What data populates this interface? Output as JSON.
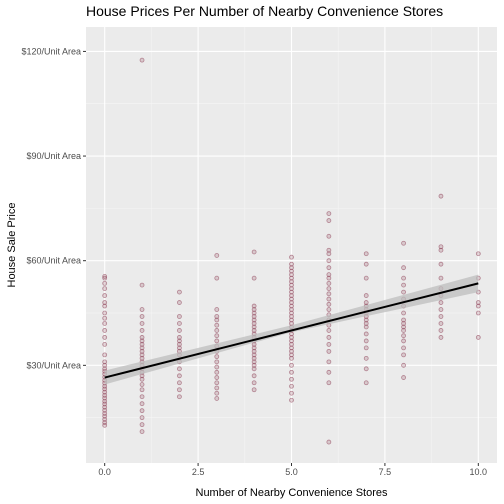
{
  "chart_data": {
    "type": "scatter",
    "title": "House Prices Per Number of Nearby Convenience Stores",
    "xlabel": "Number of Nearby Convenience Stores",
    "ylabel": "House Sale Price",
    "xlim": [
      -0.5,
      10.5
    ],
    "ylim": [
      2,
      127
    ],
    "x_ticks": [
      {
        "value": 0,
        "label": "0.0"
      },
      {
        "value": 2.5,
        "label": "2.5"
      },
      {
        "value": 5,
        "label": "5.0"
      },
      {
        "value": 7.5,
        "label": "7.5"
      },
      {
        "value": 10,
        "label": "10.0"
      }
    ],
    "y_ticks": [
      {
        "value": 30,
        "label": "$30/Unit Area"
      },
      {
        "value": 60,
        "label": "$60/Unit Area"
      },
      {
        "value": 90,
        "label": "$90/Unit Area"
      },
      {
        "value": 120,
        "label": "$120/Unit Area"
      }
    ],
    "x_minor": [
      1.25,
      3.75,
      6.25,
      8.75
    ],
    "y_minor": [
      15,
      45,
      75,
      105
    ],
    "grid": true,
    "point_color": "#8b3a52",
    "background_color": "#ebebeb",
    "series": [
      {
        "x": [
          0,
          0,
          0,
          0,
          0,
          0,
          0,
          0,
          0,
          0,
          0,
          0,
          0,
          0,
          0,
          0,
          0,
          0,
          0,
          0,
          0,
          0,
          0,
          0,
          0,
          0,
          0,
          0,
          0,
          0,
          0,
          0,
          0,
          0,
          0,
          0,
          1,
          1,
          1,
          1,
          1,
          1,
          1,
          1,
          1,
          1,
          1,
          1,
          1,
          1,
          1,
          1,
          1,
          1,
          1,
          1,
          1,
          1,
          1,
          1,
          1,
          1,
          1,
          2,
          2,
          2,
          2,
          2,
          2,
          2,
          2,
          2,
          2,
          2,
          2,
          2,
          2,
          2,
          2,
          2,
          3,
          3,
          3,
          3,
          3,
          3,
          3,
          3,
          3,
          3,
          3,
          3,
          3,
          3,
          3,
          3,
          3,
          3,
          3,
          3,
          4,
          4,
          4,
          4,
          4,
          4,
          4,
          4,
          4,
          4,
          4,
          4,
          4,
          4,
          4,
          4,
          4,
          4,
          4,
          4,
          4,
          4,
          4,
          4,
          5,
          5,
          5,
          5,
          5,
          5,
          5,
          5,
          5,
          5,
          5,
          5,
          5,
          5,
          5,
          5,
          5,
          5,
          5,
          5,
          5,
          5,
          5,
          5,
          5,
          5,
          5,
          5,
          5,
          5,
          5,
          5,
          5,
          5,
          5,
          6,
          6,
          6,
          6,
          6,
          6,
          6,
          6,
          6,
          6,
          6,
          6,
          6,
          6,
          6,
          6,
          6,
          6,
          6,
          6,
          6,
          6,
          6,
          6,
          6,
          6,
          7,
          7,
          7,
          7,
          7,
          7,
          7,
          7,
          7,
          7,
          7,
          7,
          7,
          7,
          7,
          7,
          7,
          7,
          8,
          8,
          8,
          8,
          8,
          8,
          8,
          8,
          8,
          8,
          8,
          8,
          8,
          8,
          8,
          8,
          8,
          8,
          9,
          9,
          9,
          9,
          9,
          9,
          9,
          9,
          9,
          9,
          9,
          9,
          9,
          10,
          10,
          10,
          10,
          10,
          10,
          10
        ],
        "y": [
          12.8,
          13.6,
          14.5,
          15.4,
          16.2,
          17.1,
          18.0,
          18.9,
          19.7,
          20.6,
          21.4,
          22.3,
          23.2,
          24.0,
          24.9,
          25.7,
          26.6,
          27.5,
          28.3,
          29.0,
          30.0,
          31.0,
          33.0,
          36.0,
          38.0,
          40.0,
          42.0,
          43.5,
          45.0,
          47.0,
          48.0,
          50.0,
          52.0,
          53.5,
          55.0,
          55.5,
          11.0,
          13.0,
          15.0,
          17.0,
          19.0,
          21.0,
          23.0,
          24.5,
          26.0,
          27.0,
          28.0,
          29.0,
          30.0,
          31.0,
          32.0,
          33.0,
          34.0,
          35.0,
          36.0,
          37.0,
          38.0,
          40.0,
          42.0,
          44.0,
          46.0,
          53.0,
          117.5,
          21.0,
          23.0,
          25.0,
          27.0,
          29.0,
          31.0,
          33.0,
          34.0,
          35.0,
          36.0,
          37.0,
          38.0,
          40.0,
          42.0,
          44.0,
          48.0,
          51.0,
          20.5,
          22.0,
          23.5,
          25.0,
          26.5,
          28.0,
          29.5,
          31.0,
          32.5,
          34.0,
          35.5,
          37.0,
          38.5,
          40.0,
          41.5,
          43.0,
          44.0,
          46.0,
          55.0,
          61.5,
          23.0,
          25.0,
          27.0,
          29.0,
          30.0,
          31.0,
          32.0,
          33.0,
          34.0,
          35.0,
          36.0,
          37.0,
          38.0,
          39.0,
          40.0,
          41.0,
          42.0,
          43.0,
          44.0,
          45.0,
          46.0,
          47.0,
          55.0,
          62.5,
          20.0,
          22.0,
          24.0,
          26.0,
          28.0,
          30.0,
          32.0,
          33.0,
          34.0,
          35.0,
          36.0,
          37.0,
          38.0,
          39.0,
          40.0,
          41.0,
          42.0,
          43.0,
          44.0,
          45.0,
          46.0,
          47.0,
          48.0,
          49.0,
          50.0,
          51.0,
          52.0,
          53.0,
          54.0,
          55.0,
          56.0,
          57.0,
          58.0,
          59.0,
          61.0,
          8.0,
          25.0,
          28.0,
          31.0,
          34.0,
          36.0,
          38.0,
          40.0,
          41.5,
          43.0,
          44.5,
          46.0,
          47.5,
          49.0,
          50.5,
          52.0,
          53.5,
          55.0,
          56.0,
          58.0,
          60.0,
          62.0,
          63.0,
          67.0,
          71.5,
          73.5,
          25.0,
          29.0,
          32.0,
          35.0,
          37.0,
          39.0,
          41.0,
          42.0,
          43.0,
          44.0,
          45.0,
          46.0,
          47.0,
          48.0,
          50.0,
          55.0,
          59.0,
          62.0,
          26.5,
          30.0,
          33.0,
          35.0,
          37.0,
          38.5,
          40.0,
          41.0,
          42.0,
          43.0,
          45.0,
          47.0,
          49.0,
          51.0,
          53.0,
          55.0,
          58.0,
          65.0,
          38.0,
          40.0,
          42.0,
          44.0,
          46.0,
          48.0,
          50.0,
          52.0,
          55.0,
          59.0,
          63.0,
          64.0,
          78.5,
          38.0,
          45.0,
          47.0,
          48.0,
          51.0,
          55.0,
          62.0
        ]
      }
    ],
    "trend_line": {
      "x": [
        0,
        10
      ],
      "y": [
        26.5,
        53.5
      ]
    },
    "confidence_band": {
      "x": [
        0,
        5,
        10
      ],
      "lower": [
        24.5,
        39.5,
        51.0
      ],
      "upper": [
        28.5,
        41.5,
        56.0
      ]
    }
  }
}
